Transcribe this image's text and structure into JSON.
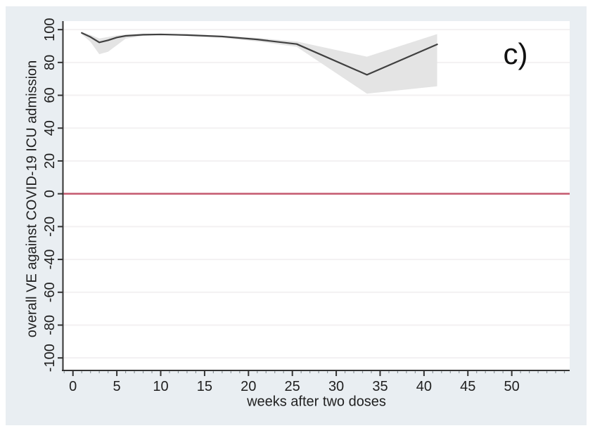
{
  "figure": {
    "panel_label": "c)",
    "colors": {
      "outer_background": "#e9eef2",
      "plot_background": "#ffffff",
      "gridline": "#f3f1f2",
      "axis": "#333333",
      "minor_tick": "#8f979c",
      "text": "#1f1f1f",
      "series_line": "#404040",
      "confidence_band": "#e4e4e4",
      "zero_line": "#c4576d"
    }
  },
  "chart_data": {
    "type": "line",
    "title": "",
    "xlabel": "weeks after two doses",
    "ylabel": "overall VE against COVID-19 ICU admission",
    "xlim": [
      -1.1,
      56.6
    ],
    "ylim": [
      -107.2,
      105.2
    ],
    "x_ticks": [
      0,
      5,
      10,
      15,
      20,
      25,
      30,
      35,
      40,
      45,
      50
    ],
    "x_minor_tick_step": 1,
    "x_minor_tick_range": [
      -1,
      56
    ],
    "y_ticks": [
      -100,
      -80,
      -60,
      -40,
      -20,
      0,
      20,
      40,
      60,
      80,
      100
    ],
    "grid": "horizontal",
    "legend": "none",
    "zero_reference_line": {
      "y": 0
    },
    "series": [
      {
        "x": [
          1,
          2,
          3,
          4,
          5,
          6,
          8,
          10,
          13,
          17,
          21,
          25.5,
          33.5,
          41.5
        ],
        "y": [
          98,
          95.5,
          92.2,
          93.5,
          95.2,
          96.2,
          96.9,
          97.1,
          96.7,
          95.8,
          94,
          91.2,
          72.5,
          91
        ]
      }
    ],
    "confidence_band": {
      "x": [
        1,
        2,
        3,
        4,
        5,
        6,
        8,
        10,
        13,
        17,
        21,
        25.5,
        33.5,
        41.5
      ],
      "lower": [
        97.2,
        92.5,
        85,
        86.5,
        90.5,
        94.5,
        96.2,
        96.5,
        96.1,
        95,
        92.8,
        89.5,
        61,
        65.5
      ],
      "upper": [
        98.6,
        96.8,
        94.6,
        95.5,
        96.5,
        97,
        97.4,
        97.5,
        97.2,
        96.4,
        95,
        92.8,
        83.5,
        97.3
      ]
    }
  }
}
